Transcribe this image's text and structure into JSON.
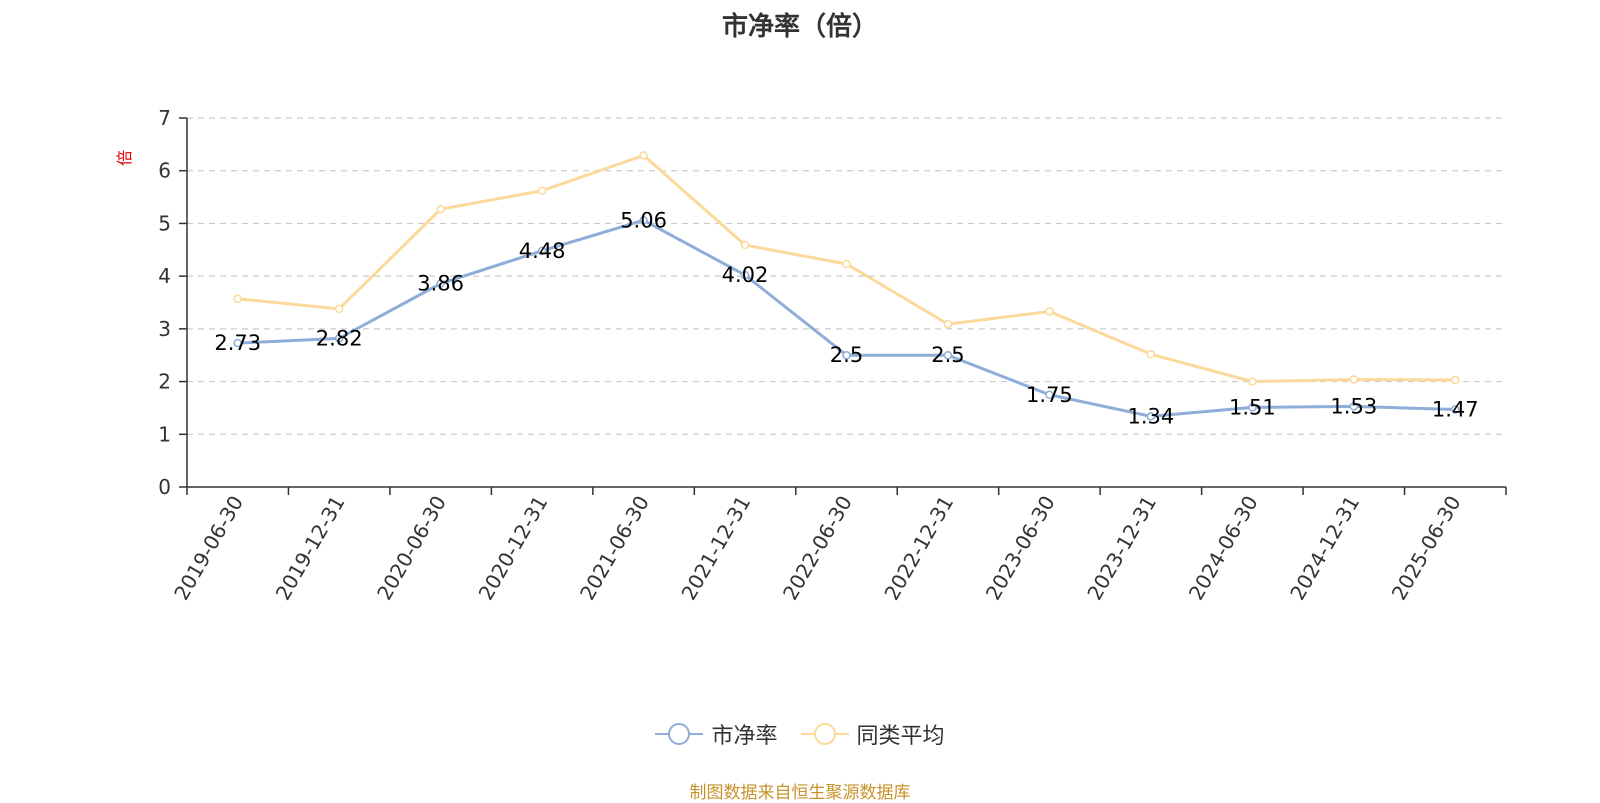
{
  "chart_data": {
    "type": "line",
    "title": "市净率（倍）",
    "ylabel": "倍",
    "xlabel": "",
    "categories": [
      "2019-06-30",
      "2019-12-31",
      "2020-06-30",
      "2020-12-31",
      "2021-06-30",
      "2021-12-31",
      "2022-06-30",
      "2022-12-31",
      "2023-06-30",
      "2023-12-31",
      "2024-06-30",
      "2024-12-31",
      "2025-06-30"
    ],
    "ylim": [
      0,
      7
    ],
    "yticks": [
      "0",
      "1",
      "2",
      "3",
      "4",
      "5",
      "6",
      "7"
    ],
    "grid": true,
    "legend_position": "bottom",
    "series": [
      {
        "name": "市净率",
        "color": "#8eaed9",
        "show_labels": true,
        "values": [
          2.73,
          2.82,
          3.86,
          4.48,
          5.06,
          4.02,
          2.5,
          2.5,
          1.75,
          1.34,
          1.51,
          1.53,
          1.47
        ],
        "labels": [
          "2.73",
          "2.82",
          "3.86",
          "4.48",
          "5.06",
          "4.02",
          "2.5",
          "2.5",
          "1.75",
          "1.34",
          "1.51",
          "1.53",
          "1.47"
        ]
      },
      {
        "name": "同类平均",
        "color": "#fcd89a",
        "show_labels": false,
        "values": [
          3.57,
          3.38,
          5.27,
          5.62,
          6.29,
          4.59,
          4.23,
          3.09,
          3.33,
          2.52,
          2.0,
          2.04,
          2.03
        ]
      }
    ]
  },
  "source_note": "制图数据来自恒生聚源数据库",
  "colors": {
    "axis": "#333333",
    "grid": "#cccccc",
    "ylabel": "#e00000",
    "source": "#c8922a"
  }
}
